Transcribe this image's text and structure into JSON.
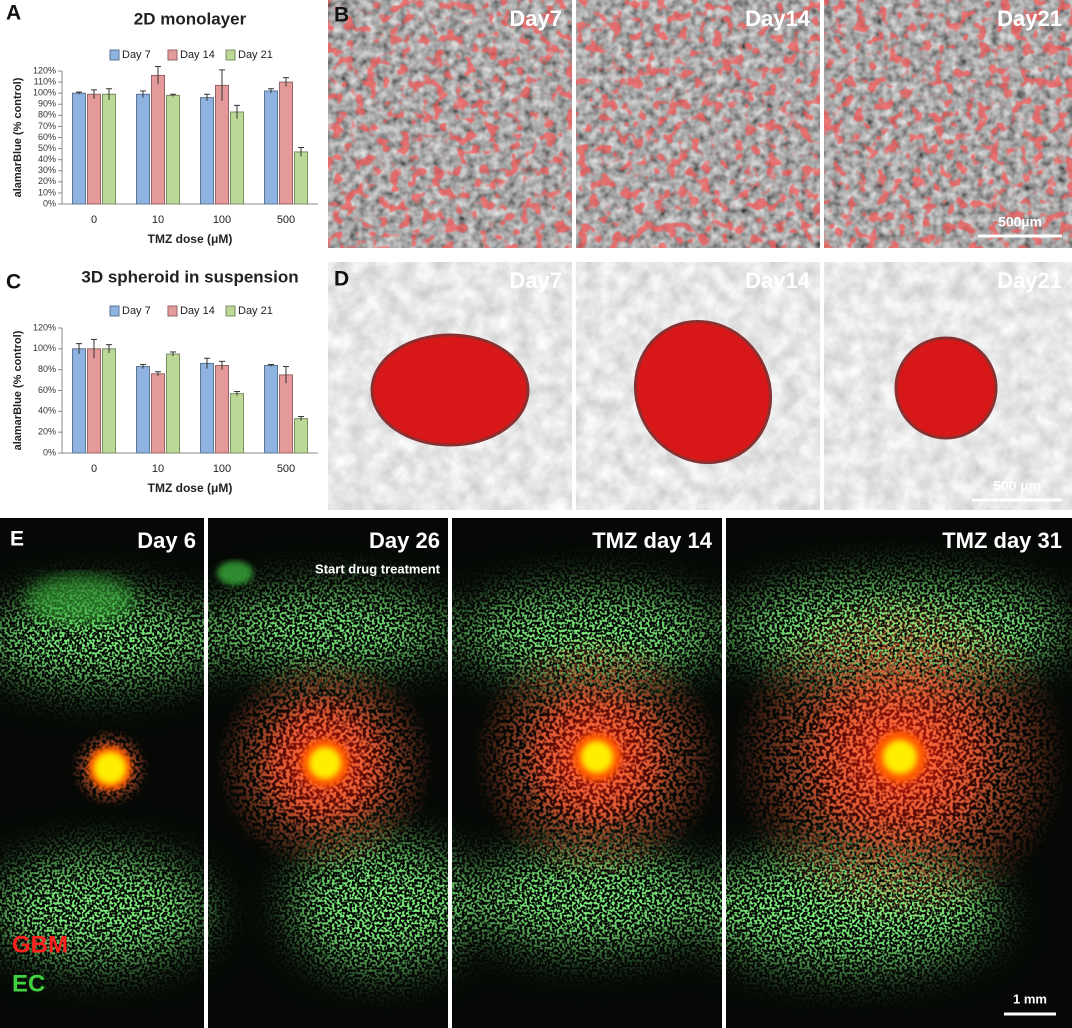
{
  "chart_data": [
    {
      "type": "bar",
      "title": "2D monolayer",
      "y_label": "alamarBlue (% control)",
      "x_label": "TMZ dose (μM)",
      "categories": [
        "0",
        "10",
        "100",
        "500"
      ],
      "series": [
        {
          "name": "Day 7",
          "color": "#8fb3e0",
          "values": [
            100,
            99,
            96,
            102
          ],
          "errors": [
            1,
            3,
            3,
            2
          ]
        },
        {
          "name": "Day 14",
          "color": "#e59a9a",
          "values": [
            99,
            116,
            107,
            110
          ],
          "errors": [
            4,
            8,
            14,
            4
          ]
        },
        {
          "name": "Day 21",
          "color": "#bcd897",
          "values": [
            99,
            98,
            83,
            47
          ],
          "errors": [
            5,
            1,
            6,
            4
          ]
        }
      ],
      "ylim": [
        0,
        120
      ],
      "yticks": [
        {
          "value": 0,
          "label": "0%"
        },
        {
          "value": 10,
          "label": "10%"
        },
        {
          "value": 20,
          "label": "20%"
        },
        {
          "value": 30,
          "label": "30%"
        },
        {
          "value": 40,
          "label": "40%"
        },
        {
          "value": 50,
          "label": "50%"
        },
        {
          "value": 60,
          "label": "60%"
        },
        {
          "value": 70,
          "label": "70%"
        },
        {
          "value": 80,
          "label": "80%"
        },
        {
          "value": 90,
          "label": "90%"
        },
        {
          "value": 100,
          "label": "100%"
        },
        {
          "value": 110,
          "label": "110%"
        },
        {
          "value": 120,
          "label": "120%"
        }
      ]
    },
    {
      "type": "bar",
      "title": "3D spheroid in suspension",
      "y_label": "alamarBlue (% control)",
      "x_label": "TMZ dose (μM)",
      "categories": [
        "0",
        "10",
        "100",
        "500"
      ],
      "series": [
        {
          "name": "Day 7",
          "color": "#8fb3e0",
          "values": [
            100,
            83,
            86,
            84
          ],
          "errors": [
            5,
            2,
            5,
            1
          ]
        },
        {
          "name": "Day 14",
          "color": "#e59a9a",
          "values": [
            100,
            76,
            84,
            75
          ],
          "errors": [
            9,
            2,
            4,
            8
          ]
        },
        {
          "name": "Day 21",
          "color": "#bcd897",
          "values": [
            100,
            95,
            57,
            33
          ],
          "errors": [
            4,
            2,
            2,
            2
          ]
        }
      ],
      "ylim": [
        0,
        120
      ],
      "yticks": [
        {
          "value": 0,
          "label": "0%"
        },
        {
          "value": 20,
          "label": "20%"
        },
        {
          "value": 40,
          "label": "40%"
        },
        {
          "value": 60,
          "label": "60%"
        },
        {
          "value": 80,
          "label": "80%"
        },
        {
          "value": 100,
          "label": "100%"
        },
        {
          "value": 120,
          "label": "120%"
        }
      ]
    }
  ],
  "panel_labels": [
    "A",
    "B",
    "C",
    "D",
    "E"
  ],
  "panel_b": {
    "labels": [
      "Day7",
      "Day14",
      "Day21"
    ],
    "scale_bar": "500µm"
  },
  "panel_d": {
    "labels": [
      "Day7",
      "Day14",
      "Day21"
    ],
    "scale_bar": "500 µm"
  },
  "panel_e": {
    "labels": [
      "Day 6",
      "Day 26",
      "TMZ day 14",
      "TMZ day 31"
    ],
    "note": "Start drug treatment",
    "legend": [
      "GBM",
      "EC"
    ],
    "scale_bar": "1 mm"
  }
}
